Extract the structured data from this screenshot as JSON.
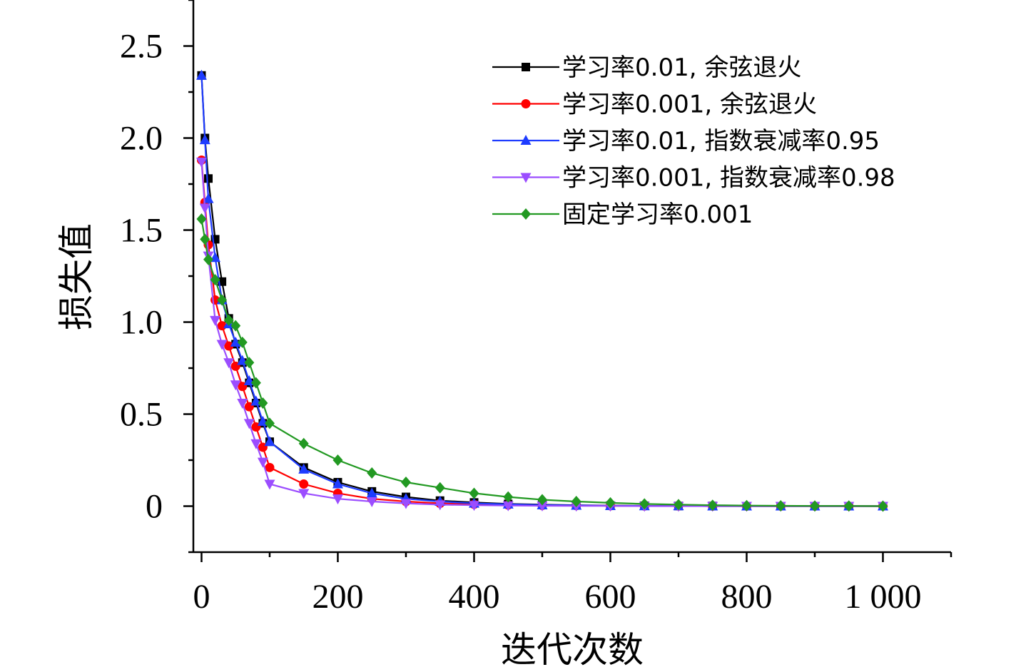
{
  "chart_data": {
    "type": "line",
    "title": "",
    "xlabel": "迭代次数",
    "ylabel": "损失值",
    "xlim": [
      -12,
      1100
    ],
    "ylim": [
      -0.25,
      2.75
    ],
    "xticks": [
      0,
      200,
      400,
      600,
      800,
      1000
    ],
    "xtick_labels": [
      "0",
      "200",
      "400",
      "600",
      "800",
      "1 000"
    ],
    "yticks": [
      0,
      0.5,
      1.0,
      1.5,
      2.0,
      2.5
    ],
    "ytick_labels": [
      "0",
      "0.5",
      "1.0",
      "1.5",
      "2.0",
      "2.5"
    ],
    "grid": false,
    "legend_position": "top-right",
    "series": [
      {
        "name": "学习率0.01, 余弦退火",
        "color": "#000000",
        "marker": "square",
        "x": [
          0,
          5,
          10,
          20,
          30,
          40,
          50,
          60,
          70,
          80,
          90,
          100,
          150,
          200,
          250,
          300,
          350,
          400,
          450,
          500,
          550,
          600,
          650,
          700,
          750,
          800,
          850,
          900,
          950,
          1000
        ],
        "y": [
          2.34,
          2.0,
          1.78,
          1.45,
          1.22,
          1.02,
          0.88,
          0.78,
          0.67,
          0.56,
          0.45,
          0.35,
          0.21,
          0.13,
          0.08,
          0.05,
          0.03,
          0.02,
          0.012,
          0.008,
          0.005,
          0.003,
          0.002,
          0.001,
          0.001,
          0.0,
          0.0,
          0.0,
          0.0,
          0.0
        ]
      },
      {
        "name": "学习率0.001, 余弦退火",
        "color": "#ff0000",
        "marker": "circle",
        "x": [
          0,
          5,
          10,
          20,
          30,
          40,
          50,
          60,
          70,
          80,
          90,
          100,
          150,
          200,
          250,
          300,
          350,
          400,
          450,
          500,
          550,
          600,
          650,
          700,
          750,
          800,
          850,
          900,
          950,
          1000
        ],
        "y": [
          1.88,
          1.65,
          1.42,
          1.12,
          0.98,
          0.87,
          0.76,
          0.65,
          0.54,
          0.43,
          0.32,
          0.21,
          0.12,
          0.07,
          0.04,
          0.025,
          0.015,
          0.01,
          0.006,
          0.004,
          0.003,
          0.002,
          0.001,
          0.001,
          0.0,
          0.0,
          0.0,
          0.0,
          0.0,
          0.0
        ]
      },
      {
        "name": "学习率0.01, 指数衰减率0.95",
        "color": "#1e3cff",
        "marker": "triangle-up",
        "x": [
          0,
          5,
          10,
          20,
          30,
          40,
          50,
          60,
          70,
          80,
          90,
          100,
          150,
          200,
          250,
          300,
          350,
          400,
          450,
          500,
          550,
          600,
          650,
          700,
          750,
          800,
          850,
          900,
          950,
          1000
        ],
        "y": [
          2.34,
          1.99,
          1.67,
          1.35,
          1.12,
          0.99,
          0.89,
          0.79,
          0.68,
          0.57,
          0.46,
          0.35,
          0.2,
          0.12,
          0.07,
          0.04,
          0.025,
          0.015,
          0.01,
          0.006,
          0.004,
          0.002,
          0.001,
          0.001,
          0.0,
          0.0,
          0.0,
          0.0,
          0.0,
          0.0
        ]
      },
      {
        "name": "学习率0.001, 指数衰减率0.98",
        "color": "#9b4dff",
        "marker": "triangle-down",
        "x": [
          0,
          5,
          10,
          20,
          30,
          40,
          50,
          60,
          70,
          80,
          90,
          100,
          150,
          200,
          250,
          300,
          350,
          400,
          450,
          500,
          550,
          600,
          650,
          700,
          750,
          800,
          850,
          900,
          950,
          1000
        ],
        "y": [
          1.87,
          1.62,
          1.36,
          1.01,
          0.88,
          0.78,
          0.66,
          0.56,
          0.45,
          0.34,
          0.24,
          0.12,
          0.07,
          0.04,
          0.025,
          0.015,
          0.008,
          0.005,
          0.003,
          0.002,
          0.001,
          0.001,
          0.0,
          0.0,
          0.0,
          0.0,
          0.0,
          0.0,
          0.0,
          0.0
        ]
      },
      {
        "name": "固定学习率0.001",
        "color": "#229922",
        "marker": "diamond",
        "x": [
          0,
          5,
          10,
          20,
          30,
          40,
          50,
          60,
          70,
          80,
          90,
          100,
          150,
          200,
          250,
          300,
          350,
          400,
          450,
          500,
          550,
          600,
          650,
          700,
          750,
          800,
          850,
          900,
          950,
          1000
        ],
        "y": [
          1.56,
          1.45,
          1.34,
          1.23,
          1.12,
          1.01,
          0.98,
          0.89,
          0.78,
          0.67,
          0.56,
          0.45,
          0.34,
          0.25,
          0.18,
          0.13,
          0.1,
          0.07,
          0.05,
          0.035,
          0.025,
          0.018,
          0.012,
          0.008,
          0.005,
          0.003,
          0.002,
          0.001,
          0.001,
          0.0
        ]
      }
    ]
  }
}
